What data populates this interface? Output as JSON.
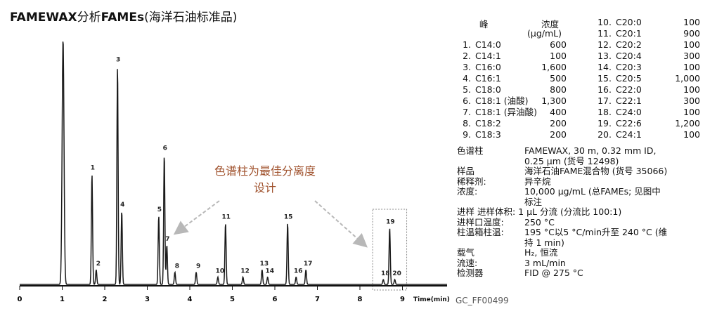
{
  "title": {
    "bold1": "FAMEWAX",
    "mid": "分析",
    "bold2": "FAMEs",
    "rest": "(海洋石油标准品)"
  },
  "callout": {
    "line1": "色谱柱为最佳分离度",
    "line2": "设计"
  },
  "doc_code": "GC_FF00499",
  "peak_table": {
    "header_peak": "峰",
    "header_conc": "浓度",
    "header_unit": "(µg/mL)",
    "left": [
      {
        "num": "1.",
        "name": "C14:0",
        "value": "600"
      },
      {
        "num": "2.",
        "name": "C14:1",
        "value": "100"
      },
      {
        "num": "3.",
        "name": "C16:0",
        "value": "1,600"
      },
      {
        "num": "4.",
        "name": "C16:1",
        "value": "500"
      },
      {
        "num": "5.",
        "name": "C18:0",
        "value": "800"
      },
      {
        "num": "6.",
        "name": "C18:1 (油酸)",
        "value": "1,300"
      },
      {
        "num": "7.",
        "name": "C18:1 (异油酸)",
        "value": "400"
      },
      {
        "num": "8.",
        "name": "C18:2",
        "value": "200"
      },
      {
        "num": "9.",
        "name": "C18:3",
        "value": "200"
      }
    ],
    "right": [
      {
        "num": "10.",
        "name": "C20:0",
        "value": "100"
      },
      {
        "num": "11.",
        "name": "C20:1",
        "value": "900"
      },
      {
        "num": "12.",
        "name": "C20:2",
        "value": "100"
      },
      {
        "num": "13.",
        "name": "C20:4",
        "value": "300"
      },
      {
        "num": "14.",
        "name": "C20:3",
        "value": "100"
      },
      {
        "num": "15.",
        "name": "C20:5",
        "value": "1,000"
      },
      {
        "num": "16.",
        "name": "C22:0",
        "value": "100"
      },
      {
        "num": "17.",
        "name": "C22:1",
        "value": "300"
      },
      {
        "num": "18.",
        "name": "C24:0",
        "value": "100"
      },
      {
        "num": "19.",
        "name": "C22:6",
        "value": "1,200"
      },
      {
        "num": "20.",
        "name": "C24:1",
        "value": "100"
      }
    ]
  },
  "conditions": {
    "column_label": "色谱柱",
    "column_value": "FAMEWAX, 30 m, 0.32 mm ID, 0.25 µm (货号 12498)",
    "sample_label": "样品",
    "sample_value": "海洋石油FAME混合物 (货号 35066)",
    "diluent_label": "稀释剂:",
    "diluent_value": "异辛烷",
    "conc_label": "浓度:",
    "conc_value": "10,000 µg/mL (总FAMEs; 见图中标注",
    "injection_line": "进样  进样体积: 1 µL 分流 (分流比  100:1)",
    "inj_temp_label": "进样口温度:",
    "inj_temp_value": "250 °C",
    "oven_label": "柱温箱柱温:",
    "oven_value": "195 °C以5 °C/min升至 240 °C (维持 1 min)",
    "carrier_label": "载气",
    "carrier_value": "H₂, 恒流",
    "flow_label": "流速:",
    "flow_value": "3 mL/min",
    "detector_label": "检测器",
    "detector_value": "FID @ 275 °C"
  },
  "chart_data": {
    "type": "line",
    "title": "FAMEWAX分析FAMEs(海洋石油标准品)",
    "xlabel": "Time(min)",
    "ylabel": "",
    "xlim": [
      0,
      10
    ],
    "xticks": [
      0,
      1,
      2,
      3,
      4,
      5,
      6,
      7,
      8,
      9
    ],
    "x_tick_labels": [
      "0",
      "1",
      "2",
      "3",
      "4",
      "5",
      "6",
      "7",
      "8",
      "9"
    ],
    "axis_title_label": "Time(min)",
    "ylim": [
      0,
      100
    ],
    "grid": false,
    "solvent_peak": {
      "rt": 1.02,
      "height": 100
    },
    "peaks": [
      {
        "label": "1",
        "rt": 1.7,
        "height": 45
      },
      {
        "label": "2",
        "rt": 1.8,
        "height": 6
      },
      {
        "label": "3",
        "rt": 2.3,
        "height": 89
      },
      {
        "label": "4",
        "rt": 2.4,
        "height": 30
      },
      {
        "label": "5",
        "rt": 3.27,
        "height": 28
      },
      {
        "label": "6",
        "rt": 3.4,
        "height": 53
      },
      {
        "label": "7",
        "rt": 3.46,
        "height": 16
      },
      {
        "label": "8",
        "rt": 3.65,
        "height": 5
      },
      {
        "label": "9",
        "rt": 4.15,
        "height": 5
      },
      {
        "label": "10",
        "rt": 4.66,
        "height": 3
      },
      {
        "label": "11",
        "rt": 4.84,
        "height": 25
      },
      {
        "label": "12",
        "rt": 5.25,
        "height": 3
      },
      {
        "label": "13",
        "rt": 5.7,
        "height": 6
      },
      {
        "label": "14",
        "rt": 5.83,
        "height": 3
      },
      {
        "label": "15",
        "rt": 6.3,
        "height": 25
      },
      {
        "label": "16",
        "rt": 6.5,
        "height": 3
      },
      {
        "label": "17",
        "rt": 6.73,
        "height": 6
      },
      {
        "label": "18",
        "rt": 8.55,
        "height": 2
      },
      {
        "label": "19",
        "rt": 8.7,
        "height": 23
      },
      {
        "label": "20",
        "rt": 8.82,
        "height": 2
      }
    ],
    "highlight_range": [
      8.3,
      9.1
    ]
  }
}
